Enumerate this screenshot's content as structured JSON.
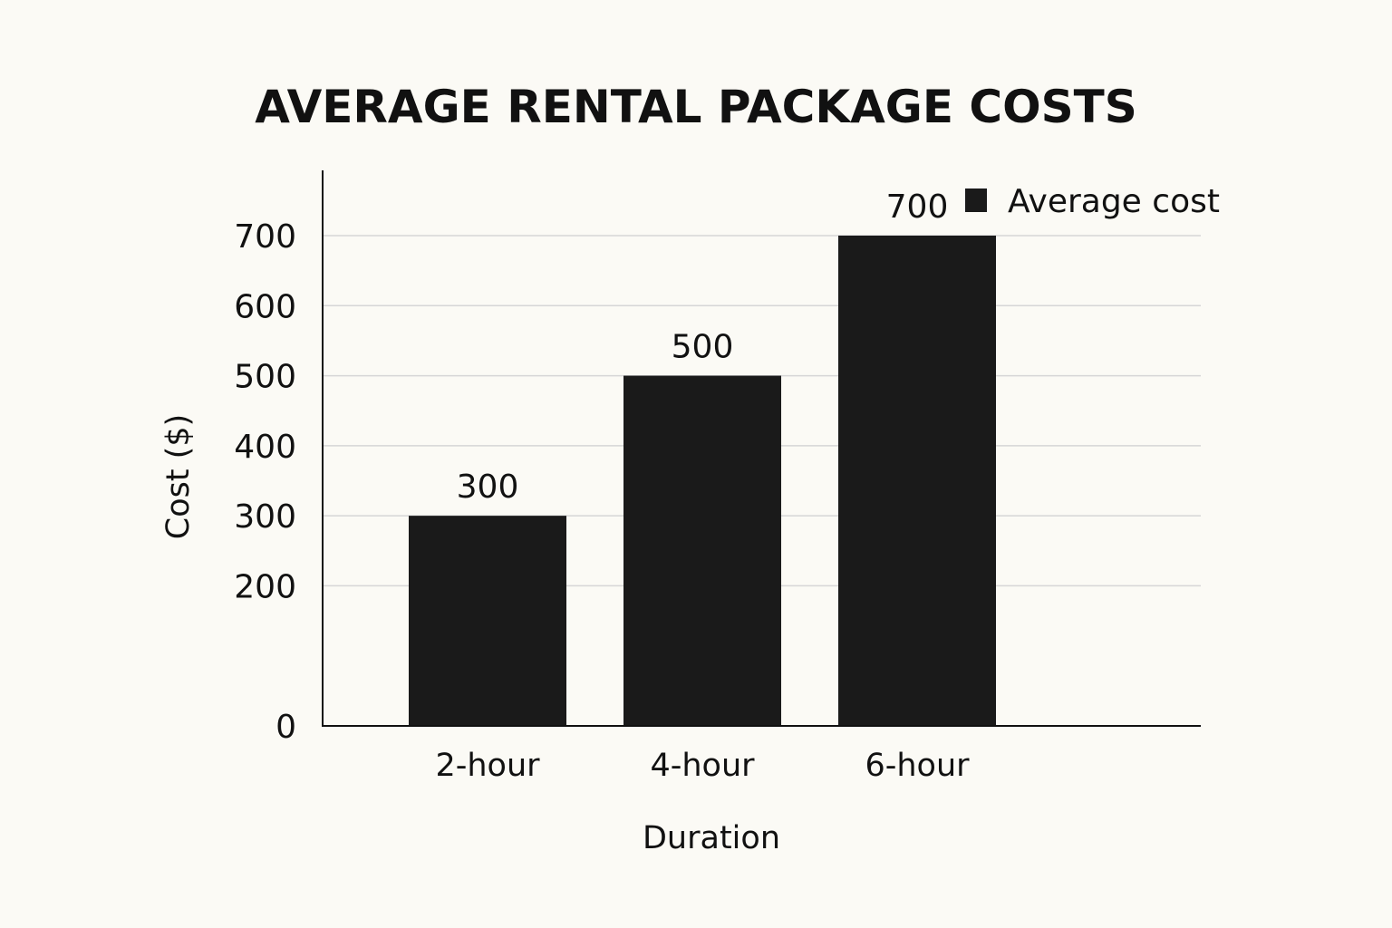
{
  "chart_data": {
    "type": "bar",
    "title": "AVERAGE RENTAL PACKAGE COSTS",
    "xlabel": "Duration",
    "ylabel": "Cost ($)",
    "categories": [
      "2-hour",
      "4-hour",
      "6-hour"
    ],
    "series": [
      {
        "name": "Average cost",
        "values": [
          300,
          500,
          700
        ],
        "color": "#1a1a1a"
      }
    ],
    "ylim": [
      0,
      700
    ],
    "yticks": [
      0,
      200,
      300,
      400,
      500,
      600,
      700
    ],
    "grid": true,
    "legend_position": "top-right",
    "colors": {
      "background": "#fbfaf5",
      "bar": "#1a1a1a",
      "grid": "#d6d6d6",
      "axis": "#111111",
      "text": "#111111"
    }
  }
}
